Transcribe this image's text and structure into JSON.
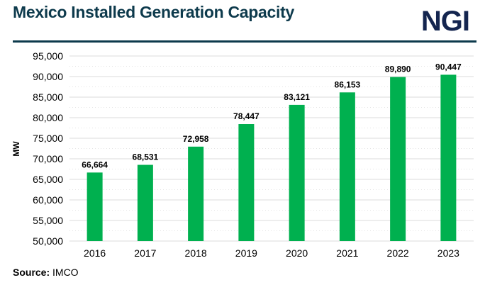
{
  "header": {
    "title": "Mexico Installed Generation Capacity",
    "logo": "NGI"
  },
  "footer": {
    "source_label": "Source:",
    "source_value": "IMCO"
  },
  "chart_data": {
    "type": "bar",
    "title": "Mexico Installed Generation Capacity",
    "xlabel": "",
    "ylabel": "MW",
    "categories": [
      "2016",
      "2017",
      "2018",
      "2019",
      "2020",
      "2021",
      "2022",
      "2023"
    ],
    "values": [
      66664,
      68531,
      72958,
      78447,
      83121,
      86153,
      89890,
      90447
    ],
    "data_labels": [
      "66,664",
      "68,531",
      "72,958",
      "78,447",
      "83,121",
      "86,153",
      "89,890",
      "90,447"
    ],
    "ylim": [
      50000,
      95000
    ],
    "yticks": [
      50000,
      55000,
      60000,
      65000,
      70000,
      75000,
      80000,
      85000,
      90000,
      95000
    ],
    "ytick_labels": [
      "50,000",
      "55,000",
      "60,000",
      "65,000",
      "70,000",
      "75,000",
      "80,000",
      "85,000",
      "90,000",
      "95,000"
    ],
    "grid": true,
    "legend": "none",
    "bar_color": "#00b04f"
  }
}
